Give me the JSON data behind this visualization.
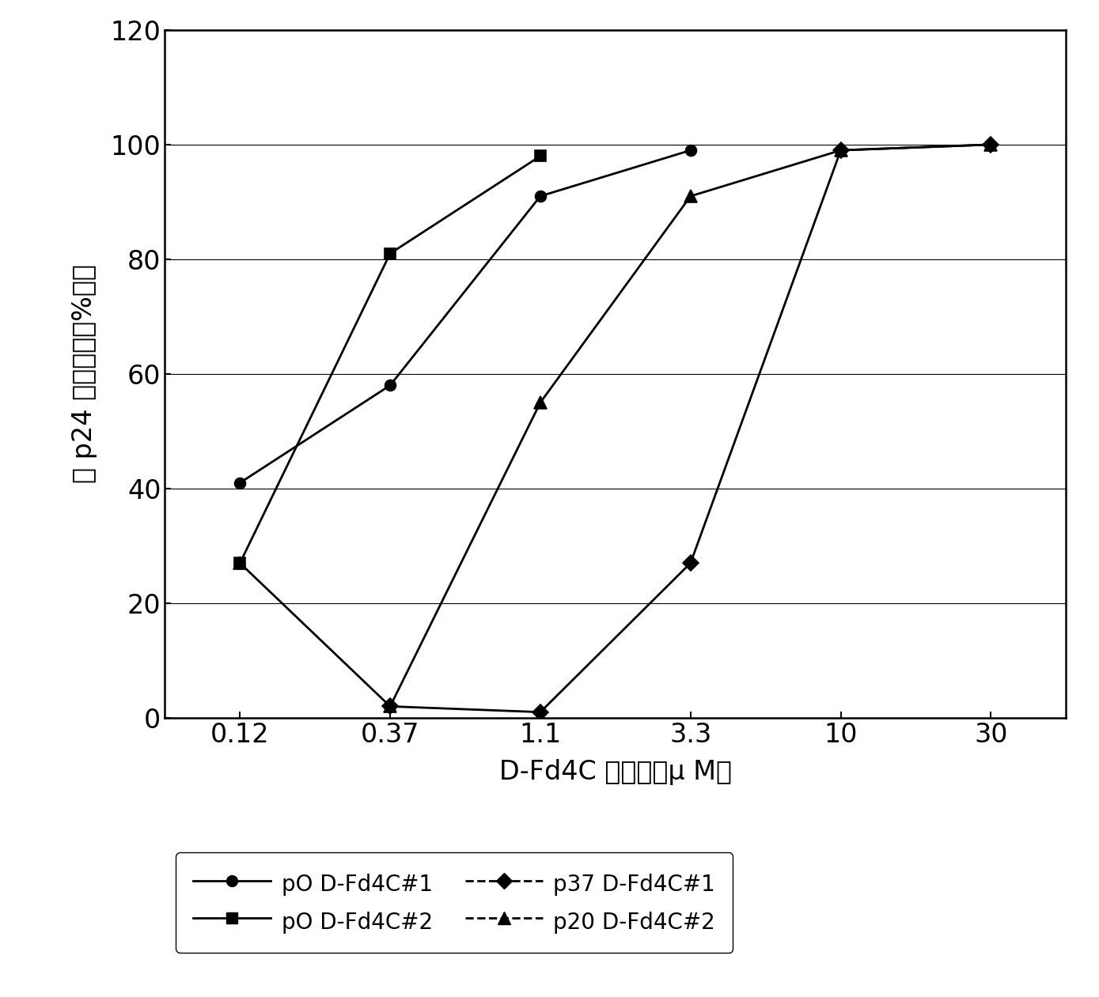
{
  "x_labels": [
    "0.12",
    "0.37",
    "1.1",
    "3.3",
    "10",
    "30"
  ],
  "x_positions": [
    0.12,
    0.37,
    1.1,
    3.3,
    10,
    30
  ],
  "series": [
    {
      "label": "pO D-Fd4C#1",
      "x": [
        0.12,
        0.37,
        1.1,
        3.3
      ],
      "y": [
        41,
        58,
        91,
        99
      ],
      "marker": "o",
      "markersize": 10,
      "color": "#000000",
      "linewidth": 2.0,
      "linestyle": "-",
      "legend_linestyle": "-"
    },
    {
      "label": "pO D-Fd4C#2",
      "x": [
        0.12,
        0.37,
        1.1
      ],
      "y": [
        27,
        81,
        98
      ],
      "marker": "s",
      "markersize": 10,
      "color": "#000000",
      "linewidth": 2.0,
      "linestyle": "-",
      "legend_linestyle": "-"
    },
    {
      "label": "p37 D-Fd4C#1",
      "x": [
        0.37,
        1.1,
        3.3,
        10,
        30
      ],
      "y": [
        2,
        1,
        27,
        99,
        100
      ],
      "marker": "D",
      "markersize": 10,
      "color": "#000000",
      "linewidth": 2.0,
      "linestyle": "-",
      "legend_linestyle": "--"
    },
    {
      "label": "p20 D-Fd4C#2",
      "x": [
        0.12,
        0.37,
        1.1,
        3.3,
        10,
        30
      ],
      "y": [
        27,
        2,
        55,
        91,
        99,
        100
      ],
      "marker": "^",
      "markersize": 11,
      "color": "#000000",
      "linewidth": 2.0,
      "linestyle": "-",
      "legend_linestyle": "--"
    }
  ],
  "ylabel": "对 p24 抗原产生的%抑制",
  "xlabel": "D-Fd4C 的浓度（μ M）",
  "ylim": [
    0,
    120
  ],
  "yticks": [
    0,
    20,
    40,
    60,
    80,
    100,
    120
  ],
  "background_color": "#ffffff",
  "tick_fontsize": 24,
  "label_fontsize": 24,
  "legend_fontsize": 20
}
